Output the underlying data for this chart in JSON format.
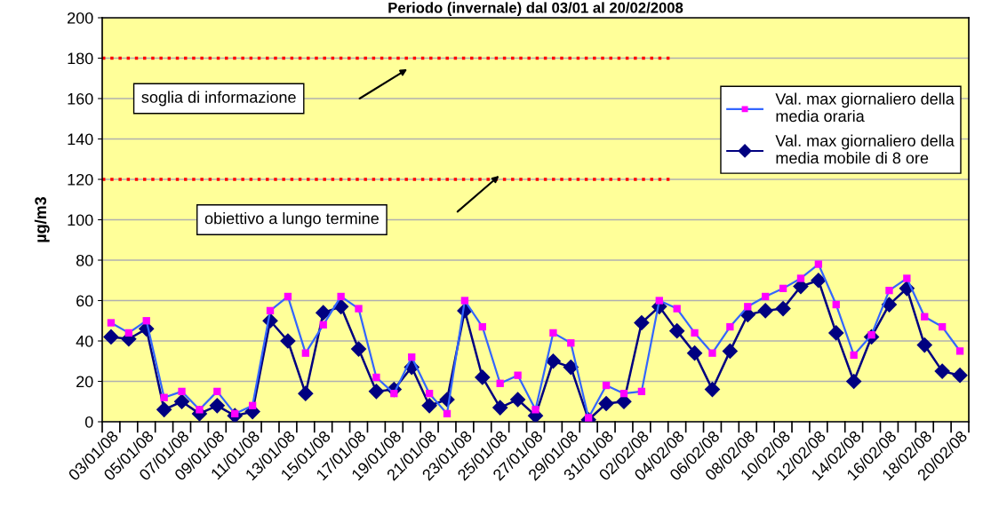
{
  "chart_data": {
    "type": "line",
    "title": "Periodo (invernale) dal 03/01 al 20/02/2008",
    "ylabel": "µg/m3",
    "categories": [
      "03/01/08",
      null,
      "05/01/08",
      null,
      "07/01/08",
      null,
      "09/01/08",
      null,
      "11/01/08",
      null,
      "13/01/08",
      null,
      "15/01/08",
      null,
      "17/01/08",
      null,
      "19/01/08",
      null,
      "21/01/08",
      null,
      "23/01/08",
      null,
      "25/01/08",
      null,
      "27/01/08",
      null,
      "29/01/08",
      null,
      "31/01/08",
      null,
      "02/02/08",
      null,
      "04/02/08",
      null,
      "06/02/08",
      null,
      "08/02/08",
      null,
      "10/02/08",
      null,
      "12/02/08",
      null,
      "14/02/08",
      null,
      "16/02/08",
      null,
      "18/02/08",
      null,
      "20/02/08"
    ],
    "series": [
      {
        "name": "Val. max giornaliero della media oraria",
        "color": "#3366ff",
        "marker": "square",
        "colors": [
          "#ff00ff",
          "#ff00ff",
          "#ff00ff",
          "#ff00ff",
          "#ff00ff",
          "#ff00ff",
          "#ff00ff",
          "#ff00ff",
          "#ff00ff",
          "#ff00ff",
          "#ff00ff",
          "#ff00ff",
          "#ff00ff",
          "#ff00ff",
          "#ff00ff",
          "#ff00ff",
          "#ff00ff",
          "#ff00ff",
          "#ff00ff",
          "#ff00ff",
          "#ff00ff",
          "#ff00ff",
          "#ff00ff",
          "#ff00ff",
          "#ff00ff",
          "#ff00ff",
          "#ff00ff",
          "#ff00ff",
          "#ff00ff",
          "#ff00ff",
          "#ff00ff",
          "#ff00ff",
          "#ff00ff",
          "#ff00ff",
          "#ff00ff",
          "#ff00ff",
          "#ff00ff",
          "#ff00ff",
          "#ff00ff",
          "#ff00ff",
          "#ff00ff",
          "#ff00ff",
          "#ff00ff",
          "#ff00ff",
          "#ff00ff",
          "#ff00ff",
          "#ff00ff",
          "#ff00ff",
          "#ff00ff"
        ],
        "values": [
          49,
          44,
          50,
          12,
          15,
          6,
          15,
          4,
          8,
          55,
          62,
          34,
          48,
          62,
          56,
          22,
          14,
          32,
          14,
          4,
          60,
          47,
          19,
          23,
          6,
          44,
          39,
          2,
          18,
          14,
          15,
          60,
          56,
          44,
          34,
          47,
          57,
          62,
          66,
          71,
          78,
          58,
          33,
          43,
          65,
          71,
          52,
          47,
          35
        ]
      },
      {
        "name": "Val. max giornaliero della media mobile di 8 ore",
        "color": "#000080",
        "marker": "diamond",
        "values": [
          42,
          41,
          46,
          6,
          10,
          4,
          8,
          3,
          5,
          50,
          40,
          14,
          54,
          57,
          36,
          15,
          16,
          27,
          8,
          11,
          55,
          22,
          7,
          11,
          3,
          30,
          27,
          1,
          9,
          10,
          49,
          57,
          45,
          34,
          16,
          35,
          53,
          55,
          56,
          67,
          70,
          44,
          20,
          42,
          58,
          66,
          38,
          25,
          23
        ]
      }
    ],
    "ylim": [
      0,
      200
    ],
    "yticks": [
      0,
      20,
      40,
      60,
      80,
      100,
      120,
      140,
      160,
      180,
      200
    ],
    "grid": "y",
    "legend": "top right",
    "ref_lines": [
      {
        "axis": "y",
        "value": 180,
        "label": "soglia di informazione",
        "color": "#ff0000",
        "line_style": "dotted"
      },
      {
        "axis": "y",
        "value": 120,
        "label": "obiettivo a lungo termine",
        "color": "#ff0000",
        "line_style": "dotted"
      }
    ]
  }
}
